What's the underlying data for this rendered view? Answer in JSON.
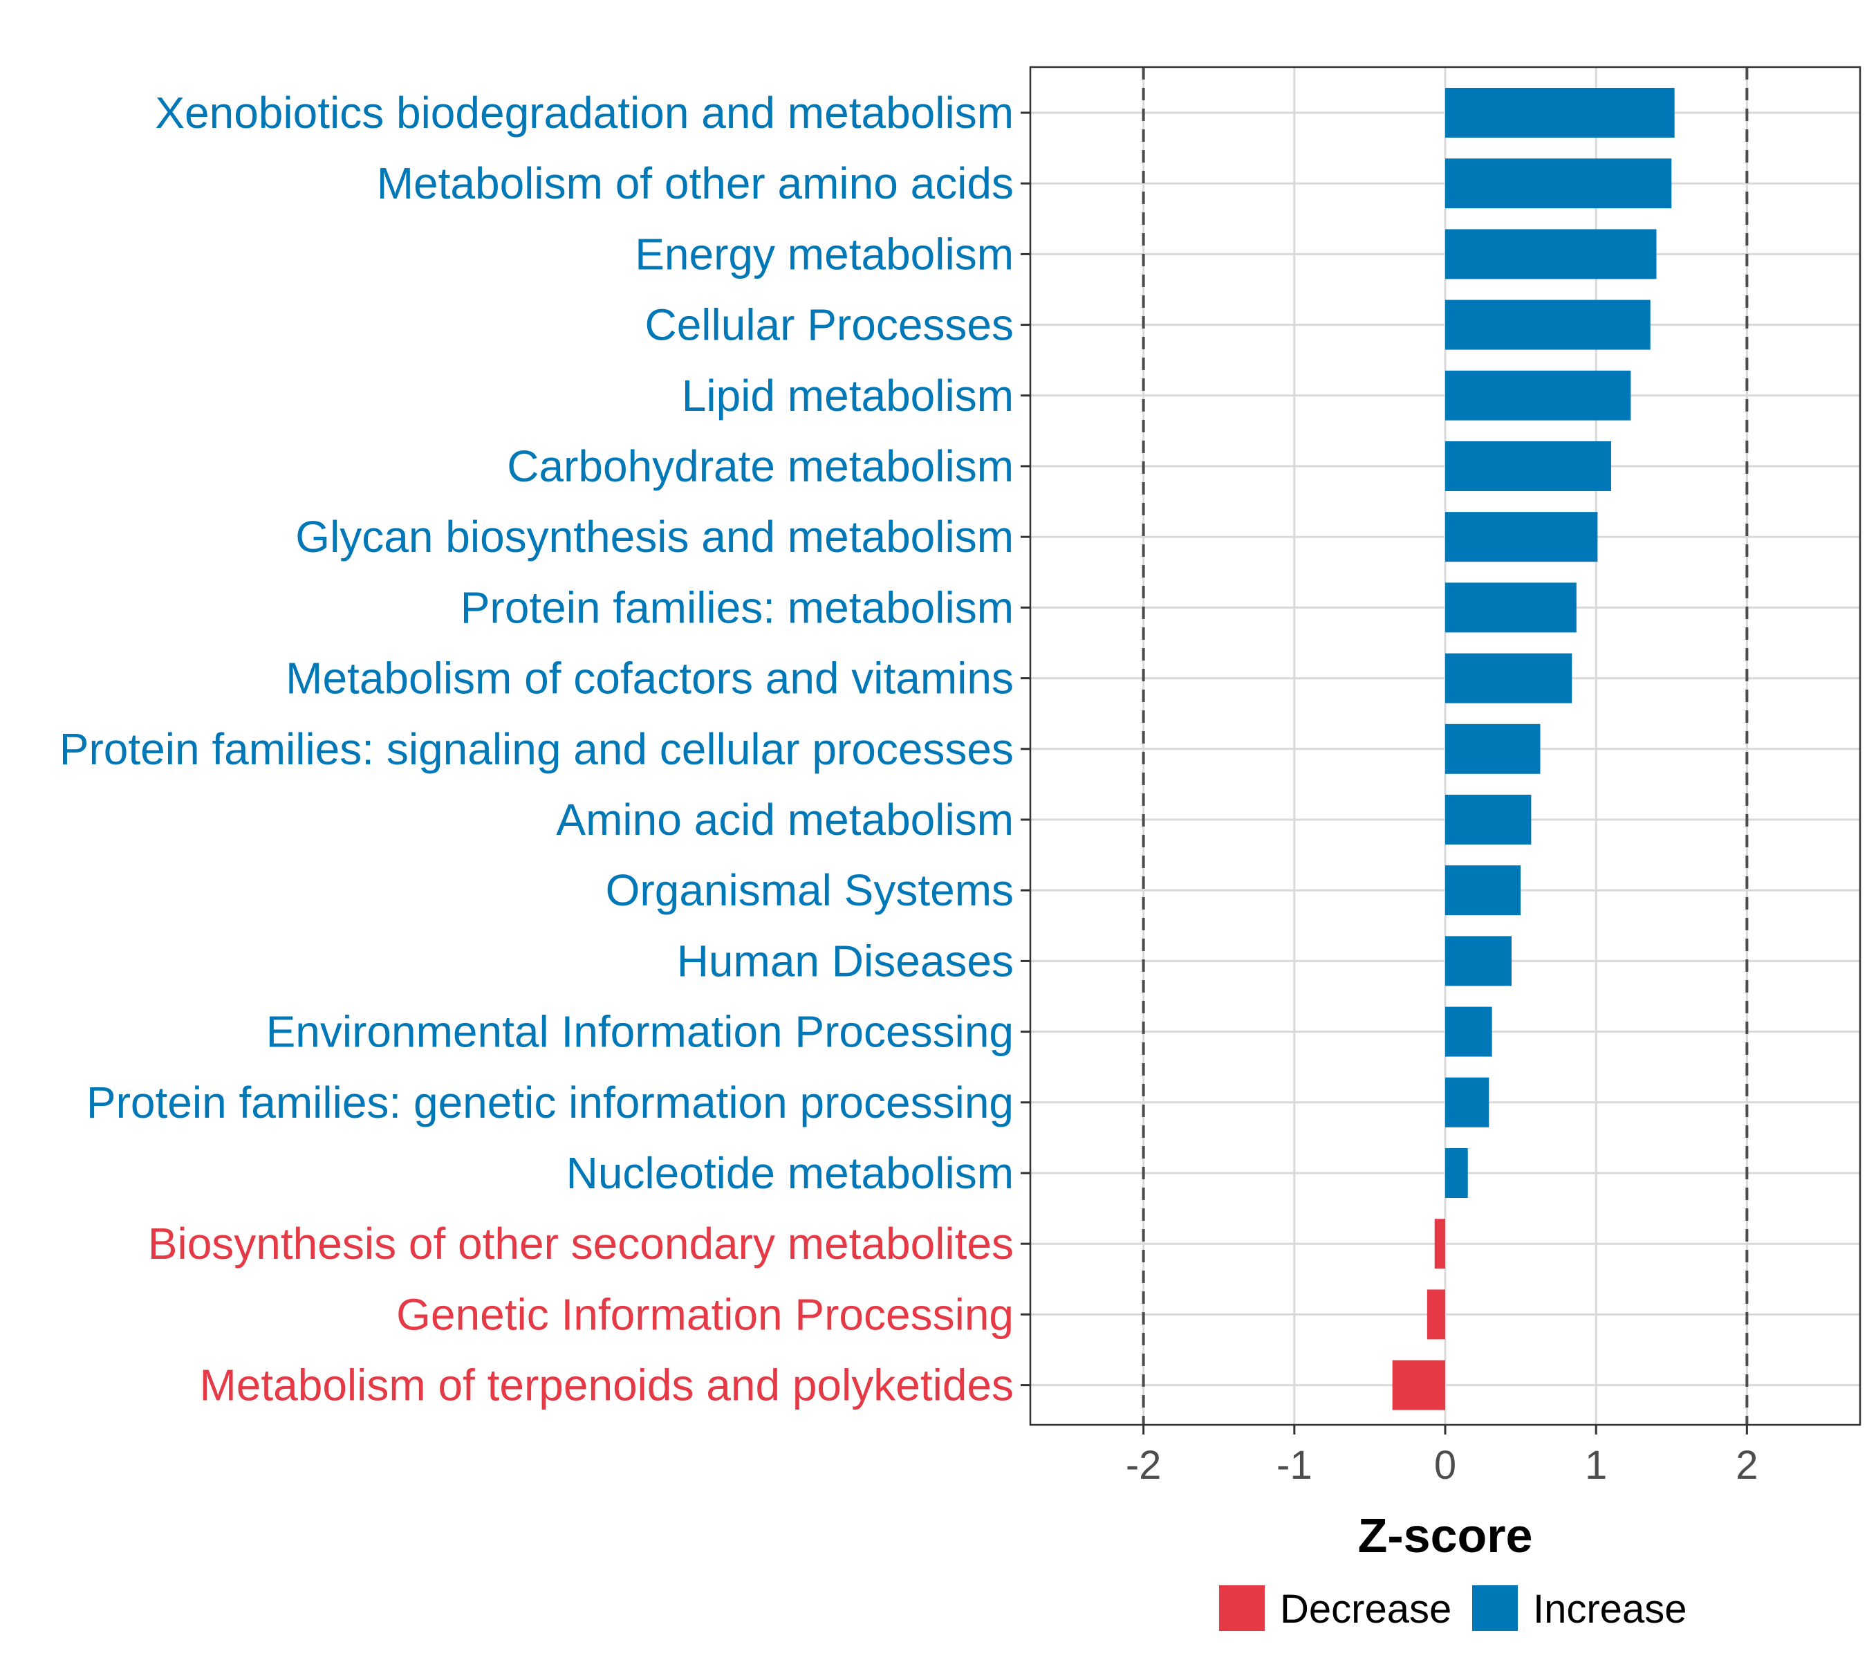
{
  "colors": {
    "increase": "#0077b6",
    "decrease": "#e63946",
    "grid": "#d9d9d9",
    "threshold": "#4d4d4d",
    "frame": "#333333"
  },
  "chart_data": {
    "type": "bar",
    "orientation": "horizontal",
    "xlabel": "Z-score",
    "xlim": [
      -2.75,
      2.75
    ],
    "xticks": [
      -2,
      -1,
      0,
      1,
      2
    ],
    "xtick_labels": [
      "-2",
      "-1",
      "0",
      "1",
      "2"
    ],
    "threshold_lines": [
      -2,
      2
    ],
    "grid": true,
    "categories": [
      "Xenobiotics biodegradation and metabolism",
      "Metabolism of other amino acids",
      "Energy metabolism",
      "Cellular Processes",
      "Lipid metabolism",
      "Carbohydrate metabolism",
      "Glycan biosynthesis and metabolism",
      "Protein families: metabolism",
      "Metabolism of cofactors and vitamins",
      "Protein families: signaling and cellular processes",
      "Amino acid metabolism",
      "Organismal Systems",
      "Human Diseases",
      "Environmental Information Processing",
      "Protein families: genetic information processing",
      "Nucleotide metabolism",
      "Biosynthesis of other secondary metabolites",
      "Genetic Information Processing",
      "Metabolism of terpenoids and polyketides"
    ],
    "values": [
      1.52,
      1.5,
      1.4,
      1.36,
      1.23,
      1.1,
      1.01,
      0.87,
      0.84,
      0.63,
      0.57,
      0.5,
      0.44,
      0.31,
      0.29,
      0.15,
      -0.07,
      -0.12,
      -0.35
    ],
    "groups": [
      "Increase",
      "Increase",
      "Increase",
      "Increase",
      "Increase",
      "Increase",
      "Increase",
      "Increase",
      "Increase",
      "Increase",
      "Increase",
      "Increase",
      "Increase",
      "Increase",
      "Increase",
      "Increase",
      "Decrease",
      "Decrease",
      "Decrease"
    ],
    "legend": {
      "position": "bottom",
      "entries": [
        {
          "name": "Decrease",
          "color": "#e63946"
        },
        {
          "name": "Increase",
          "color": "#0077b6"
        }
      ]
    }
  }
}
